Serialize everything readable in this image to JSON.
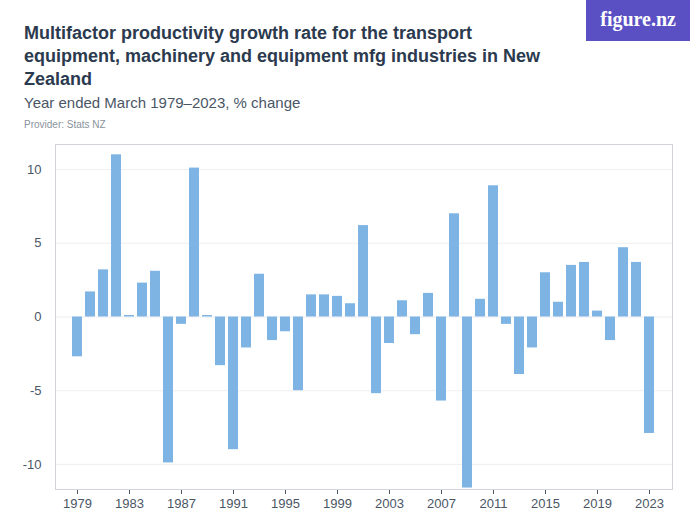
{
  "chart_data": {
    "type": "bar",
    "title": "Multifactor productivity growth rate for the transport equipment, machinery and equipment mfg industries in New Zealand",
    "subtitle": "Year ended March 1979–2023, % change",
    "source": "Provider: Stats NZ",
    "logo": "figure.nz",
    "categories": [
      "1979",
      null,
      null,
      null,
      "1983",
      null,
      null,
      null,
      "1987",
      null,
      null,
      null,
      "1991",
      null,
      null,
      null,
      "1995",
      null,
      null,
      null,
      "1999",
      null,
      null,
      null,
      "2003",
      null,
      null,
      null,
      "2007",
      null,
      null,
      null,
      "2011",
      null,
      null,
      null,
      "2015",
      null,
      null,
      null,
      "2019",
      null,
      null,
      null,
      "2023"
    ],
    "values": [
      -2.7,
      1.7,
      3.2,
      11.0,
      0.1,
      2.3,
      3.1,
      -9.9,
      -0.5,
      10.1,
      0.1,
      -3.3,
      -9.0,
      -2.1,
      2.9,
      -1.6,
      -1.0,
      -5.0,
      1.5,
      1.5,
      1.4,
      0.9,
      6.2,
      -5.2,
      -1.8,
      1.1,
      -1.2,
      1.6,
      -5.7,
      7.0,
      -11.6,
      1.2,
      8.9,
      -0.5,
      -3.9,
      -2.1,
      3.0,
      1.0,
      3.5,
      3.7,
      0.4,
      -1.6,
      4.7,
      3.7,
      -7.9
    ],
    "color": "#7eb4e3",
    "ylim": [
      -11.7,
      11.7
    ],
    "yticks": [
      -10,
      -5,
      0,
      5,
      10
    ],
    "grid": true
  }
}
